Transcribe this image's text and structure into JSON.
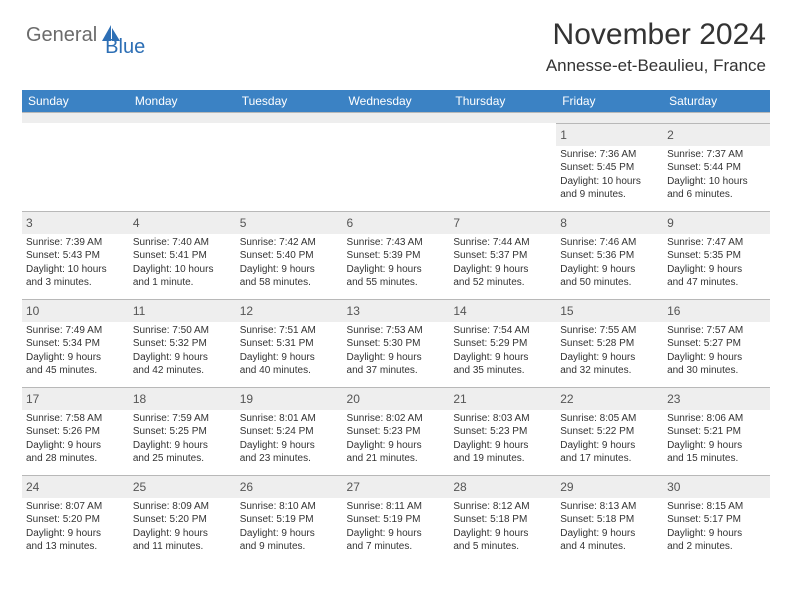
{
  "logo": {
    "text1": "General",
    "text2": "Blue"
  },
  "title": "November 2024",
  "subtitle": "Annesse-et-Beaulieu, France",
  "colors": {
    "header_bg": "#3b82c4",
    "header_text": "#ffffff",
    "daynum_bg": "#eeeeee",
    "border": "#b8b8b8",
    "text": "#333333",
    "logo_gray": "#6b6b6b",
    "logo_blue": "#2d6fb5"
  },
  "day_headers": [
    "Sunday",
    "Monday",
    "Tuesday",
    "Wednesday",
    "Thursday",
    "Friday",
    "Saturday"
  ],
  "weeks": [
    [
      null,
      null,
      null,
      null,
      null,
      {
        "n": "1",
        "sr": "Sunrise: 7:36 AM",
        "ss": "Sunset: 5:45 PM",
        "d1": "Daylight: 10 hours",
        "d2": "and 9 minutes."
      },
      {
        "n": "2",
        "sr": "Sunrise: 7:37 AM",
        "ss": "Sunset: 5:44 PM",
        "d1": "Daylight: 10 hours",
        "d2": "and 6 minutes."
      }
    ],
    [
      {
        "n": "3",
        "sr": "Sunrise: 7:39 AM",
        "ss": "Sunset: 5:43 PM",
        "d1": "Daylight: 10 hours",
        "d2": "and 3 minutes."
      },
      {
        "n": "4",
        "sr": "Sunrise: 7:40 AM",
        "ss": "Sunset: 5:41 PM",
        "d1": "Daylight: 10 hours",
        "d2": "and 1 minute."
      },
      {
        "n": "5",
        "sr": "Sunrise: 7:42 AM",
        "ss": "Sunset: 5:40 PM",
        "d1": "Daylight: 9 hours",
        "d2": "and 58 minutes."
      },
      {
        "n": "6",
        "sr": "Sunrise: 7:43 AM",
        "ss": "Sunset: 5:39 PM",
        "d1": "Daylight: 9 hours",
        "d2": "and 55 minutes."
      },
      {
        "n": "7",
        "sr": "Sunrise: 7:44 AM",
        "ss": "Sunset: 5:37 PM",
        "d1": "Daylight: 9 hours",
        "d2": "and 52 minutes."
      },
      {
        "n": "8",
        "sr": "Sunrise: 7:46 AM",
        "ss": "Sunset: 5:36 PM",
        "d1": "Daylight: 9 hours",
        "d2": "and 50 minutes."
      },
      {
        "n": "9",
        "sr": "Sunrise: 7:47 AM",
        "ss": "Sunset: 5:35 PM",
        "d1": "Daylight: 9 hours",
        "d2": "and 47 minutes."
      }
    ],
    [
      {
        "n": "10",
        "sr": "Sunrise: 7:49 AM",
        "ss": "Sunset: 5:34 PM",
        "d1": "Daylight: 9 hours",
        "d2": "and 45 minutes."
      },
      {
        "n": "11",
        "sr": "Sunrise: 7:50 AM",
        "ss": "Sunset: 5:32 PM",
        "d1": "Daylight: 9 hours",
        "d2": "and 42 minutes."
      },
      {
        "n": "12",
        "sr": "Sunrise: 7:51 AM",
        "ss": "Sunset: 5:31 PM",
        "d1": "Daylight: 9 hours",
        "d2": "and 40 minutes."
      },
      {
        "n": "13",
        "sr": "Sunrise: 7:53 AM",
        "ss": "Sunset: 5:30 PM",
        "d1": "Daylight: 9 hours",
        "d2": "and 37 minutes."
      },
      {
        "n": "14",
        "sr": "Sunrise: 7:54 AM",
        "ss": "Sunset: 5:29 PM",
        "d1": "Daylight: 9 hours",
        "d2": "and 35 minutes."
      },
      {
        "n": "15",
        "sr": "Sunrise: 7:55 AM",
        "ss": "Sunset: 5:28 PM",
        "d1": "Daylight: 9 hours",
        "d2": "and 32 minutes."
      },
      {
        "n": "16",
        "sr": "Sunrise: 7:57 AM",
        "ss": "Sunset: 5:27 PM",
        "d1": "Daylight: 9 hours",
        "d2": "and 30 minutes."
      }
    ],
    [
      {
        "n": "17",
        "sr": "Sunrise: 7:58 AM",
        "ss": "Sunset: 5:26 PM",
        "d1": "Daylight: 9 hours",
        "d2": "and 28 minutes."
      },
      {
        "n": "18",
        "sr": "Sunrise: 7:59 AM",
        "ss": "Sunset: 5:25 PM",
        "d1": "Daylight: 9 hours",
        "d2": "and 25 minutes."
      },
      {
        "n": "19",
        "sr": "Sunrise: 8:01 AM",
        "ss": "Sunset: 5:24 PM",
        "d1": "Daylight: 9 hours",
        "d2": "and 23 minutes."
      },
      {
        "n": "20",
        "sr": "Sunrise: 8:02 AM",
        "ss": "Sunset: 5:23 PM",
        "d1": "Daylight: 9 hours",
        "d2": "and 21 minutes."
      },
      {
        "n": "21",
        "sr": "Sunrise: 8:03 AM",
        "ss": "Sunset: 5:23 PM",
        "d1": "Daylight: 9 hours",
        "d2": "and 19 minutes."
      },
      {
        "n": "22",
        "sr": "Sunrise: 8:05 AM",
        "ss": "Sunset: 5:22 PM",
        "d1": "Daylight: 9 hours",
        "d2": "and 17 minutes."
      },
      {
        "n": "23",
        "sr": "Sunrise: 8:06 AM",
        "ss": "Sunset: 5:21 PM",
        "d1": "Daylight: 9 hours",
        "d2": "and 15 minutes."
      }
    ],
    [
      {
        "n": "24",
        "sr": "Sunrise: 8:07 AM",
        "ss": "Sunset: 5:20 PM",
        "d1": "Daylight: 9 hours",
        "d2": "and 13 minutes."
      },
      {
        "n": "25",
        "sr": "Sunrise: 8:09 AM",
        "ss": "Sunset: 5:20 PM",
        "d1": "Daylight: 9 hours",
        "d2": "and 11 minutes."
      },
      {
        "n": "26",
        "sr": "Sunrise: 8:10 AM",
        "ss": "Sunset: 5:19 PM",
        "d1": "Daylight: 9 hours",
        "d2": "and 9 minutes."
      },
      {
        "n": "27",
        "sr": "Sunrise: 8:11 AM",
        "ss": "Sunset: 5:19 PM",
        "d1": "Daylight: 9 hours",
        "d2": "and 7 minutes."
      },
      {
        "n": "28",
        "sr": "Sunrise: 8:12 AM",
        "ss": "Sunset: 5:18 PM",
        "d1": "Daylight: 9 hours",
        "d2": "and 5 minutes."
      },
      {
        "n": "29",
        "sr": "Sunrise: 8:13 AM",
        "ss": "Sunset: 5:18 PM",
        "d1": "Daylight: 9 hours",
        "d2": "and 4 minutes."
      },
      {
        "n": "30",
        "sr": "Sunrise: 8:15 AM",
        "ss": "Sunset: 5:17 PM",
        "d1": "Daylight: 9 hours",
        "d2": "and 2 minutes."
      }
    ]
  ]
}
